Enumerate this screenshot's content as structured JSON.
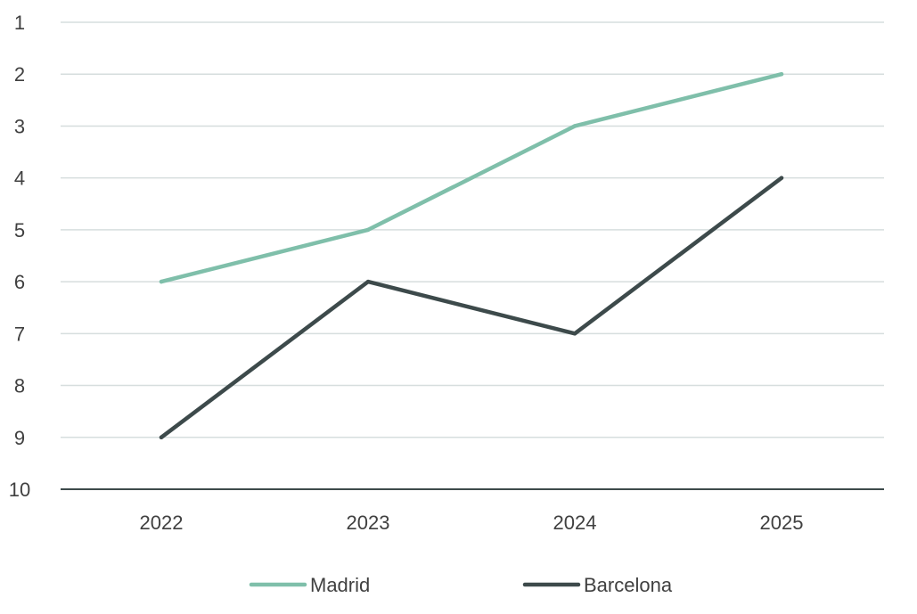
{
  "chart_data": {
    "type": "line",
    "categories": [
      "2022",
      "2023",
      "2024",
      "2025"
    ],
    "y_ticks": [
      "1",
      "2",
      "3",
      "4",
      "5",
      "6",
      "7",
      "8",
      "9",
      "10"
    ],
    "ylim": [
      1,
      10
    ],
    "y_inverted": true,
    "grid": true,
    "legend_position": "bottom",
    "series": [
      {
        "name": "Madrid",
        "values": [
          6,
          5,
          3,
          2
        ],
        "color": "#7fbfaa"
      },
      {
        "name": "Barcelona",
        "values": [
          9,
          6,
          7,
          4
        ],
        "color": "#3d4a4b"
      }
    ],
    "colors": {
      "grid": "#d6dede",
      "axis": "#3d4a4b"
    }
  }
}
